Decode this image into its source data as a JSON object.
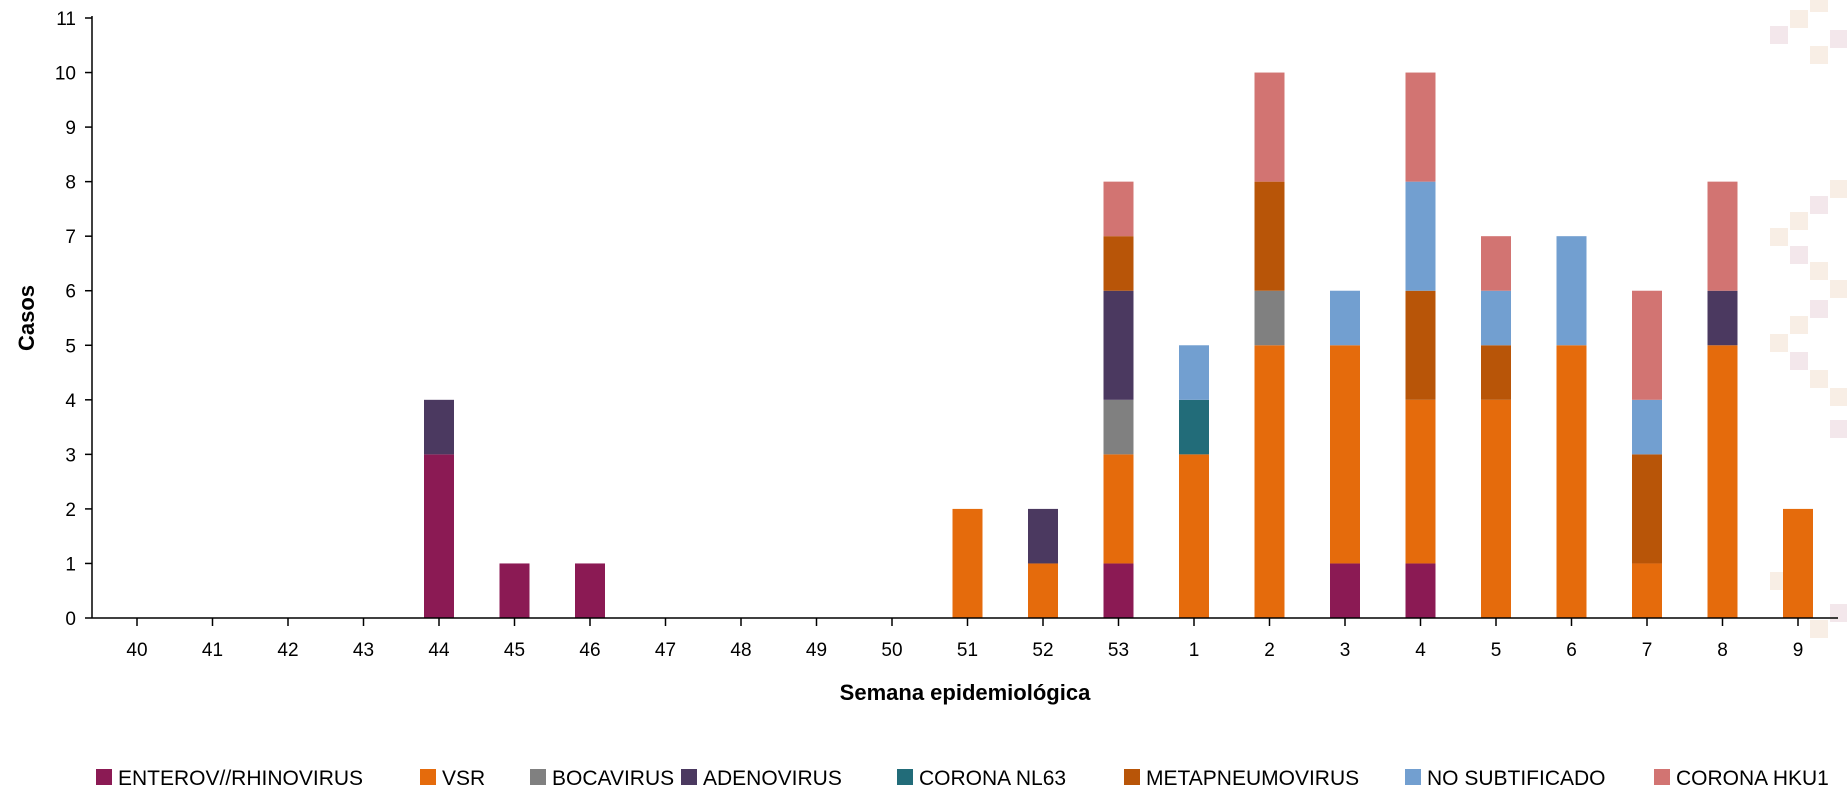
{
  "chart_data": {
    "type": "bar",
    "stacked": true,
    "title": "",
    "xlabel": "Semana epidemiológica",
    "ylabel": "Casos",
    "ylim": [
      0,
      11
    ],
    "yticks": [
      0,
      1,
      2,
      3,
      4,
      5,
      6,
      7,
      8,
      9,
      10,
      11
    ],
    "grid": false,
    "legend_position": "bottom",
    "categories": [
      "40",
      "41",
      "42",
      "43",
      "44",
      "45",
      "46",
      "47",
      "48",
      "49",
      "50",
      "51",
      "52",
      "53",
      "1",
      "2",
      "3",
      "4",
      "5",
      "6",
      "7",
      "8",
      "9"
    ],
    "series": [
      {
        "name": "ENTEROV//RHINOVIRUS",
        "color": "#8b1a54",
        "values": [
          0,
          0,
          0,
          0,
          3,
          1,
          1,
          0,
          0,
          0,
          0,
          0,
          0,
          1,
          0,
          0,
          1,
          1,
          0,
          0,
          0,
          0,
          0
        ]
      },
      {
        "name": "VSR",
        "color": "#e56b0c",
        "values": [
          0,
          0,
          0,
          0,
          0,
          0,
          0,
          0,
          0,
          0,
          0,
          2,
          1,
          2,
          3,
          5,
          4,
          3,
          4,
          5,
          1,
          5,
          2
        ]
      },
      {
        "name": "BOCAVIRUS",
        "color": "#808080",
        "values": [
          0,
          0,
          0,
          0,
          0,
          0,
          0,
          0,
          0,
          0,
          0,
          0,
          0,
          1,
          0,
          1,
          0,
          0,
          0,
          0,
          0,
          0,
          0
        ]
      },
      {
        "name": "ADENOVIRUS",
        "color": "#4b3960",
        "values": [
          0,
          0,
          0,
          0,
          1,
          0,
          0,
          0,
          0,
          0,
          0,
          0,
          1,
          2,
          0,
          0,
          0,
          0,
          0,
          0,
          0,
          1,
          0
        ]
      },
      {
        "name": "CORONA NL63",
        "color": "#226c79",
        "values": [
          0,
          0,
          0,
          0,
          0,
          0,
          0,
          0,
          0,
          0,
          0,
          0,
          0,
          0,
          1,
          0,
          0,
          0,
          0,
          0,
          0,
          0,
          0
        ]
      },
      {
        "name": "METAPNEUMOVIRUS",
        "color": "#b85508",
        "values": [
          0,
          0,
          0,
          0,
          0,
          0,
          0,
          0,
          0,
          0,
          0,
          0,
          0,
          1,
          0,
          2,
          0,
          2,
          1,
          0,
          2,
          0,
          0
        ]
      },
      {
        "name": "NO SUBTIFICADO",
        "color": "#729fd0",
        "values": [
          0,
          0,
          0,
          0,
          0,
          0,
          0,
          0,
          0,
          0,
          0,
          0,
          0,
          0,
          1,
          0,
          1,
          2,
          1,
          2,
          1,
          0,
          0
        ]
      },
      {
        "name": "CORONA HKU1",
        "color": "#d27472",
        "values": [
          0,
          0,
          0,
          0,
          0,
          0,
          0,
          0,
          0,
          0,
          0,
          0,
          0,
          1,
          0,
          2,
          0,
          2,
          1,
          0,
          2,
          2,
          0
        ]
      }
    ]
  }
}
